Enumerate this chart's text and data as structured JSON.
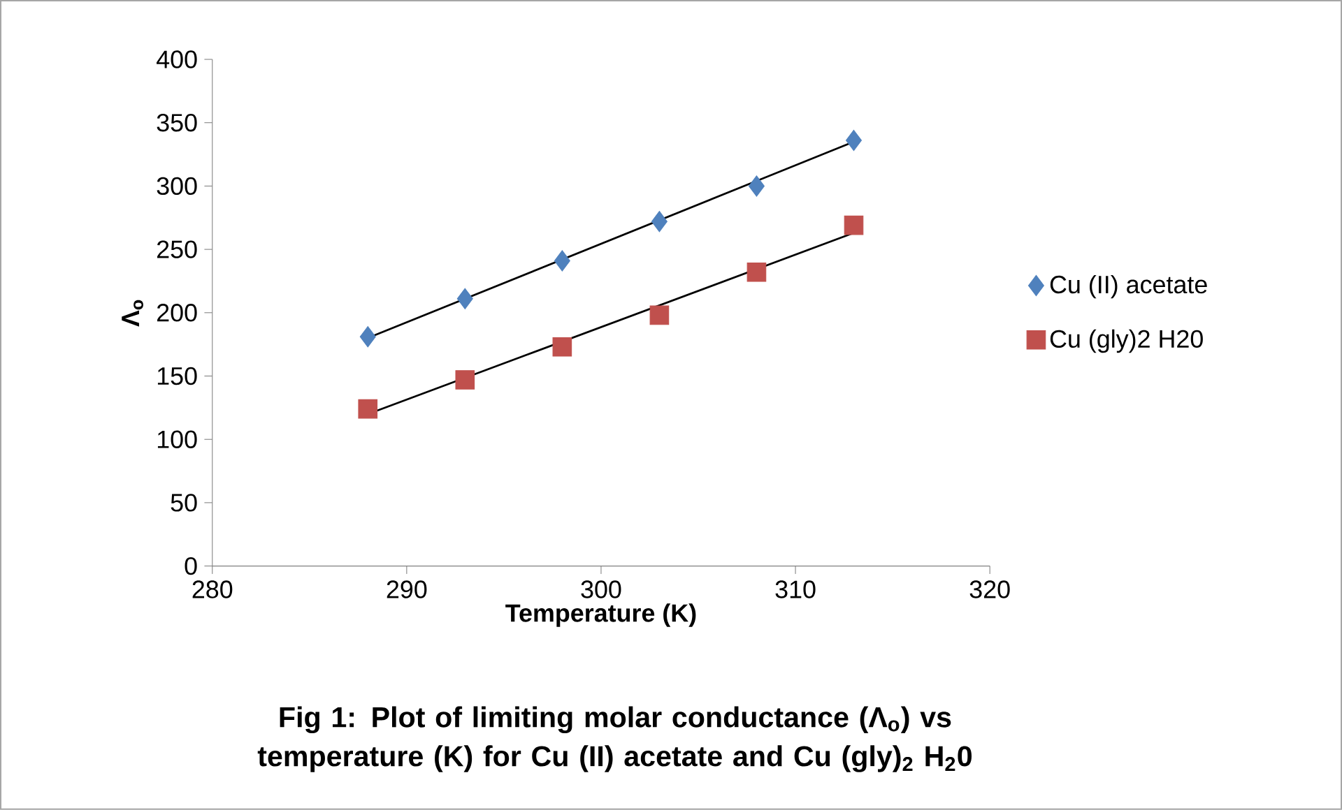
{
  "chart_data": {
    "type": "scatter",
    "xlabel": "Temperature (K)",
    "ylabel": "Λ$_{o}$",
    "xlim": [
      280,
      320
    ],
    "xticks": [
      280,
      290,
      300,
      310,
      320
    ],
    "ylim": [
      0,
      400
    ],
    "yticks": [
      0,
      50,
      100,
      150,
      200,
      250,
      300,
      350,
      400
    ],
    "legend": "right",
    "grid": false,
    "series": [
      {
        "name": "Cu (II) acetate",
        "color": "#4f81bd",
        "marker": "diamond",
        "x": [
          288,
          293,
          298,
          303,
          308,
          313
        ],
        "values": [
          181,
          211,
          241,
          272,
          300,
          336
        ]
      },
      {
        "name": "Cu (gly)2 H20",
        "color": "#c0504d",
        "marker": "square",
        "x": [
          288,
          293,
          298,
          303,
          308,
          313
        ],
        "values": [
          124,
          147,
          173,
          198,
          232,
          269
        ]
      },
      {
        "type": "line",
        "color": "#000000",
        "marker": "none",
        "line_style": "solid",
        "x": [
          288,
          313
        ],
        "values": [
          180,
          335
        ]
      },
      {
        "type": "line",
        "color": "#000000",
        "marker": "none",
        "line_style": "solid",
        "x": [
          288,
          313
        ],
        "values": [
          120,
          263
        ]
      }
    ],
    "annotations": [
      "Fig 1: Plot of limiting molar conductance (Λ$_{o}$) vs temperature (K) for Cu (II) acetate and Cu (gly)$_{2}$ H$_{2}$0"
    ]
  }
}
